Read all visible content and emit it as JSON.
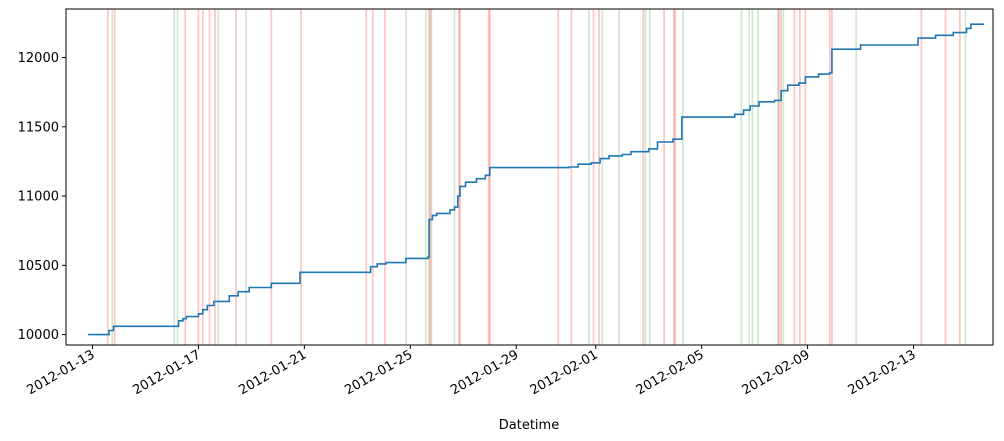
{
  "chart_data": {
    "type": "line",
    "title": "",
    "xlabel": "Datetime",
    "ylabel": "",
    "xlim": [
      "2012-01-12T00:00",
      "2012-02-16T00:00"
    ],
    "ylim": [
      9925,
      12350
    ],
    "x_ticks": [
      "2012-01-13",
      "2012-01-17",
      "2012-01-21",
      "2012-01-25",
      "2012-01-29",
      "2012-02-01",
      "2012-02-05",
      "2012-02-09",
      "2012-02-13"
    ],
    "y_ticks": [
      10000,
      10500,
      11000,
      11500,
      12000
    ],
    "grid": false,
    "legend": "none",
    "series": [
      {
        "color": "#1f77b4",
        "points": [
          [
            "2012-01-12T20:00",
            10000
          ],
          [
            "2012-01-13T13:00",
            10000
          ],
          [
            "2012-01-13T15:00",
            10030
          ],
          [
            "2012-01-13T19:00",
            10060
          ],
          [
            "2012-01-16T02:00",
            10060
          ],
          [
            "2012-01-16T06:00",
            10100
          ],
          [
            "2012-01-16T10:00",
            10115
          ],
          [
            "2012-01-16T13:00",
            10130
          ],
          [
            "2012-01-17T00:00",
            10150
          ],
          [
            "2012-01-17T04:00",
            10180
          ],
          [
            "2012-01-17T08:00",
            10210
          ],
          [
            "2012-01-17T14:00",
            10240
          ],
          [
            "2012-01-18T04:00",
            10280
          ],
          [
            "2012-01-18T12:00",
            10310
          ],
          [
            "2012-01-18T22:00",
            10340
          ],
          [
            "2012-01-19T18:00",
            10370
          ],
          [
            "2012-01-20T16:00",
            10370
          ],
          [
            "2012-01-20T20:00",
            10450
          ],
          [
            "2012-01-23T08:00",
            10450
          ],
          [
            "2012-01-23T12:00",
            10490
          ],
          [
            "2012-01-23T18:00",
            10510
          ],
          [
            "2012-01-24T02:00",
            10520
          ],
          [
            "2012-01-24T20:00",
            10550
          ],
          [
            "2012-01-25T16:00",
            10560
          ],
          [
            "2012-01-25T17:00",
            10830
          ],
          [
            "2012-01-25T20:00",
            10860
          ],
          [
            "2012-01-26T00:00",
            10875
          ],
          [
            "2012-01-26T12:00",
            10900
          ],
          [
            "2012-01-26T16:00",
            10920
          ],
          [
            "2012-01-26T19:00",
            11000
          ],
          [
            "2012-01-26T21:00",
            11070
          ],
          [
            "2012-01-27T02:00",
            11100
          ],
          [
            "2012-01-27T12:00",
            11125
          ],
          [
            "2012-01-27T20:00",
            11150
          ],
          [
            "2012-01-28T00:00",
            11205
          ],
          [
            "2012-01-31T00:00",
            11210
          ],
          [
            "2012-01-31T08:00",
            11230
          ],
          [
            "2012-01-31T20:00",
            11240
          ],
          [
            "2012-02-01T04:00",
            11270
          ],
          [
            "2012-02-01T12:00",
            11290
          ],
          [
            "2012-02-02T00:00",
            11300
          ],
          [
            "2012-02-02T08:00",
            11320
          ],
          [
            "2012-02-03T00:00",
            11340
          ],
          [
            "2012-02-03T08:00",
            11390
          ],
          [
            "2012-02-03T22:00",
            11410
          ],
          [
            "2012-02-04T06:00",
            11570
          ],
          [
            "2012-02-06T00:00",
            11570
          ],
          [
            "2012-02-06T06:00",
            11590
          ],
          [
            "2012-02-06T14:00",
            11620
          ],
          [
            "2012-02-06T20:00",
            11650
          ],
          [
            "2012-02-07T04:00",
            11680
          ],
          [
            "2012-02-07T18:00",
            11690
          ],
          [
            "2012-02-08T00:00",
            11760
          ],
          [
            "2012-02-08T06:00",
            11800
          ],
          [
            "2012-02-08T16:00",
            11815
          ],
          [
            "2012-02-08T22:00",
            11860
          ],
          [
            "2012-02-09T10:00",
            11880
          ],
          [
            "2012-02-09T20:00",
            11890
          ],
          [
            "2012-02-09T22:00",
            12060
          ],
          [
            "2012-02-10T16:00",
            12060
          ],
          [
            "2012-02-11T00:00",
            12090
          ],
          [
            "2012-02-13T00:00",
            12090
          ],
          [
            "2012-02-13T04:00",
            12140
          ],
          [
            "2012-02-13T20:00",
            12160
          ],
          [
            "2012-02-14T12:00",
            12180
          ],
          [
            "2012-02-15T00:00",
            12210
          ],
          [
            "2012-02-15T04:00",
            12240
          ],
          [
            "2012-02-15T16:00",
            12240
          ]
        ]
      }
    ],
    "vlines": {
      "sell": {
        "color": "#ff0000",
        "times": [
          "2012-01-13T14:00",
          "2012-01-13T20:00",
          "2012-01-16T12:00",
          "2012-01-17T00:00",
          "2012-01-17T04:00",
          "2012-01-17T10:00",
          "2012-01-17T15:00",
          "2012-01-18T10:00",
          "2012-01-19T18:00",
          "2012-01-20T21:00",
          "2012-01-23T08:00",
          "2012-01-23T14:00",
          "2012-01-24T01:00",
          "2012-01-25T17:00",
          "2012-01-25T19:00",
          "2012-01-26T20:00",
          "2012-01-26T21:00",
          "2012-01-27T23:00",
          "2012-01-28T00:00",
          "2012-01-30T14:00",
          "2012-01-31T02:00",
          "2012-01-31T22:00",
          "2012-02-01T03:00",
          "2012-02-02T19:00",
          "2012-02-03T14:00",
          "2012-02-03T23:00",
          "2012-02-04T00:00",
          "2012-02-07T22:00",
          "2012-02-08T00:00",
          "2012-02-08T12:00",
          "2012-02-08T17:00",
          "2012-02-08T22:00",
          "2012-02-09T20:00",
          "2012-02-09T22:00",
          "2012-02-13T07:00",
          "2012-02-14T05:00",
          "2012-02-14T18:00"
        ]
      },
      "buy": {
        "color": "#2ca02c",
        "times": [
          "2012-01-13T18:00",
          "2012-01-16T02:00",
          "2012-01-16T05:00",
          "2012-01-17T18:00",
          "2012-01-18T19:00",
          "2012-01-24T20:00",
          "2012-01-25T14:00",
          "2012-01-25T18:00",
          "2012-01-26T16:00",
          "2012-01-31T18:00",
          "2012-02-01T06:00",
          "2012-02-01T21:00",
          "2012-02-02T21:00",
          "2012-02-03T01:00",
          "2012-02-04T07:00",
          "2012-02-06T12:00",
          "2012-02-06T19:00",
          "2012-02-06T22:00",
          "2012-02-07T03:00",
          "2012-02-07T21:00",
          "2012-02-08T02:00",
          "2012-02-10T20:00",
          "2012-02-14T23:00"
        ]
      }
    }
  }
}
